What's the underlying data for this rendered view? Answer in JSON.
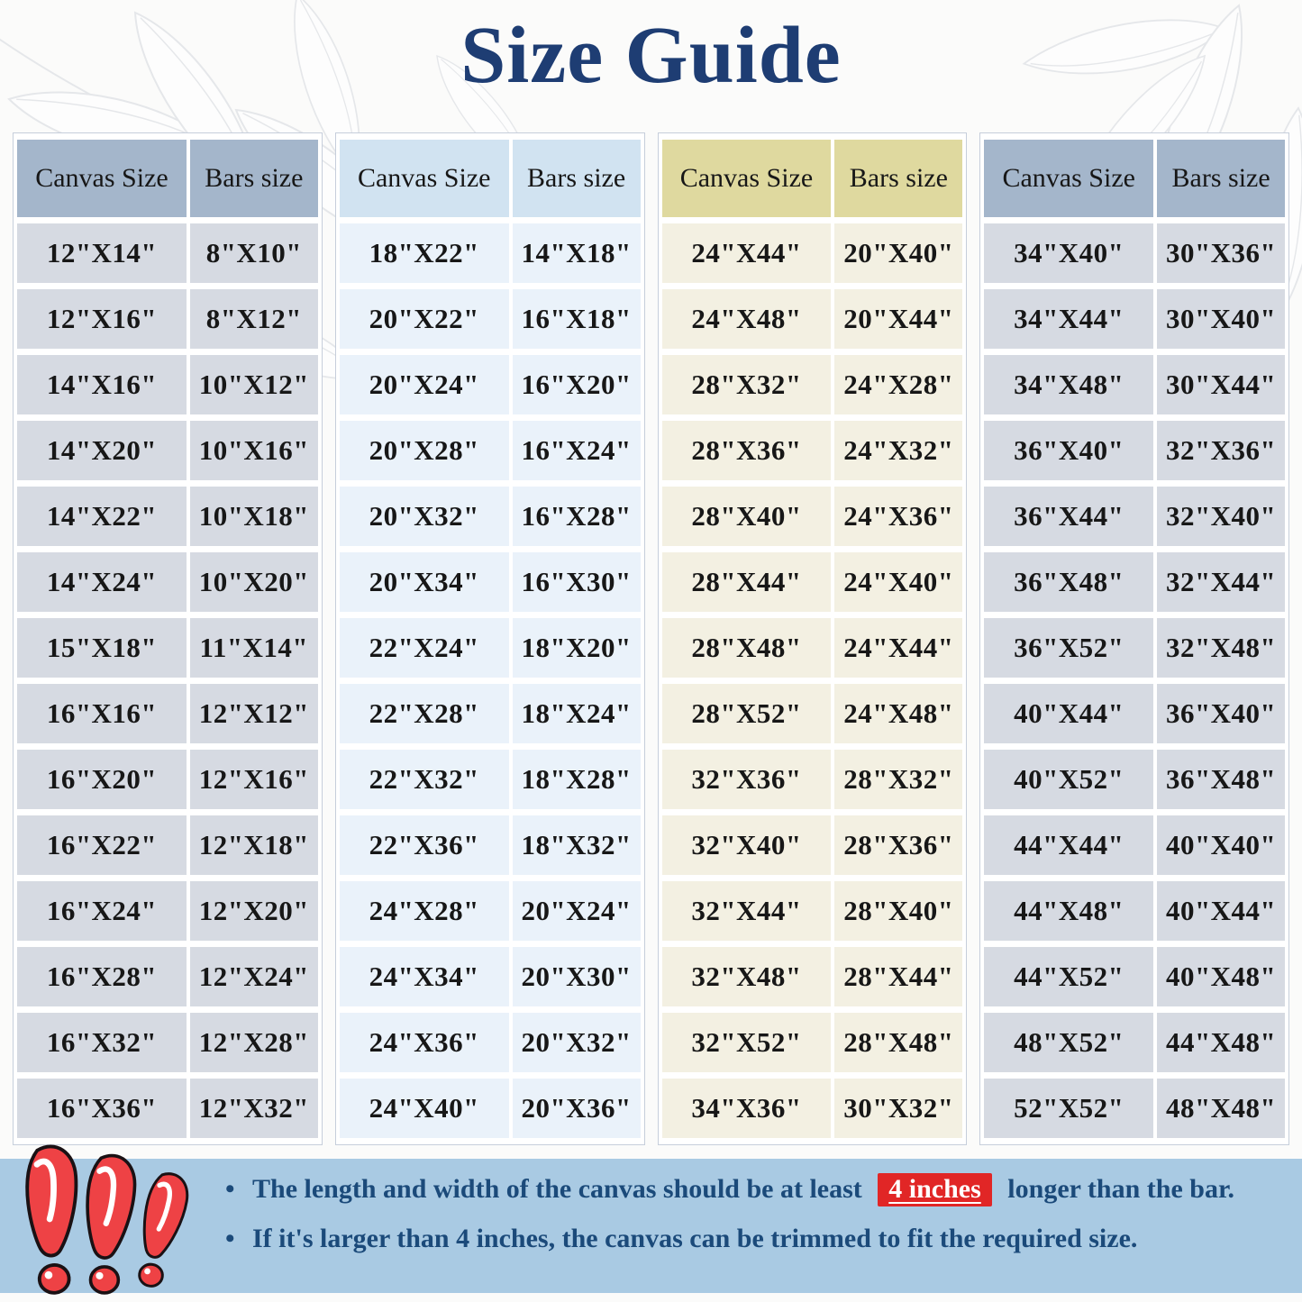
{
  "title": "Size Guide",
  "table_headers": [
    "Canvas Size",
    "Bars size"
  ],
  "tables": [
    {
      "theme": "slate",
      "rows": [
        [
          "12\"X14\"",
          "8\"X10\""
        ],
        [
          "12\"X16\"",
          "8\"X12\""
        ],
        [
          "14\"X16\"",
          "10\"X12\""
        ],
        [
          "14\"X20\"",
          "10\"X16\""
        ],
        [
          "14\"X22\"",
          "10\"X18\""
        ],
        [
          "14\"X24\"",
          "10\"X20\""
        ],
        [
          "15\"X18\"",
          "11\"X14\""
        ],
        [
          "16\"X16\"",
          "12\"X12\""
        ],
        [
          "16\"X20\"",
          "12\"X16\""
        ],
        [
          "16\"X22\"",
          "12\"X18\""
        ],
        [
          "16\"X24\"",
          "12\"X20\""
        ],
        [
          "16\"X28\"",
          "12\"X24\""
        ],
        [
          "16\"X32\"",
          "12\"X28\""
        ],
        [
          "16\"X36\"",
          "12\"X32\""
        ]
      ]
    },
    {
      "theme": "sky",
      "rows": [
        [
          "18\"X22\"",
          "14\"X18\""
        ],
        [
          "20\"X22\"",
          "16\"X18\""
        ],
        [
          "20\"X24\"",
          "16\"X20\""
        ],
        [
          "20\"X28\"",
          "16\"X24\""
        ],
        [
          "20\"X32\"",
          "16\"X28\""
        ],
        [
          "20\"X34\"",
          "16\"X30\""
        ],
        [
          "22\"X24\"",
          "18\"X20\""
        ],
        [
          "22\"X28\"",
          "18\"X24\""
        ],
        [
          "22\"X32\"",
          "18\"X28\""
        ],
        [
          "22\"X36\"",
          "18\"X32\""
        ],
        [
          "24\"X28\"",
          "20\"X24\""
        ],
        [
          "24\"X34\"",
          "20\"X30\""
        ],
        [
          "24\"X36\"",
          "20\"X32\""
        ],
        [
          "24\"X40\"",
          "20\"X36\""
        ]
      ]
    },
    {
      "theme": "cream",
      "rows": [
        [
          "24\"X44\"",
          "20\"X40\""
        ],
        [
          "24\"X48\"",
          "20\"X44\""
        ],
        [
          "28\"X32\"",
          "24\"X28\""
        ],
        [
          "28\"X36\"",
          "24\"X32\""
        ],
        [
          "28\"X40\"",
          "24\"X36\""
        ],
        [
          "28\"X44\"",
          "24\"X40\""
        ],
        [
          "28\"X48\"",
          "24\"X44\""
        ],
        [
          "28\"X52\"",
          "24\"X48\""
        ],
        [
          "32\"X36\"",
          "28\"X32\""
        ],
        [
          "32\"X40\"",
          "28\"X36\""
        ],
        [
          "32\"X44\"",
          "28\"X40\""
        ],
        [
          "32\"X48\"",
          "28\"X44\""
        ],
        [
          "32\"X52\"",
          "28\"X48\""
        ],
        [
          "34\"X36\"",
          "30\"X32\""
        ]
      ]
    },
    {
      "theme": "slate",
      "rows": [
        [
          "34\"X40\"",
          "30\"X36\""
        ],
        [
          "34\"X44\"",
          "30\"X40\""
        ],
        [
          "34\"X48\"",
          "30\"X44\""
        ],
        [
          "36\"X40\"",
          "32\"X36\""
        ],
        [
          "36\"X44\"",
          "32\"X40\""
        ],
        [
          "36\"X48\"",
          "32\"X44\""
        ],
        [
          "36\"X52\"",
          "32\"X48\""
        ],
        [
          "40\"X44\"",
          "36\"X40\""
        ],
        [
          "40\"X52\"",
          "36\"X48\""
        ],
        [
          "44\"X44\"",
          "40\"X40\""
        ],
        [
          "44\"X48\"",
          "40\"X44\""
        ],
        [
          "44\"X52\"",
          "40\"X48\""
        ],
        [
          "48\"X52\"",
          "44\"X48\""
        ],
        [
          "52\"X52\"",
          "48\"X48\""
        ]
      ]
    }
  ],
  "notes": [
    {
      "before": "The length and width of the canvas should be at least",
      "highlight": "4 inches",
      "after": "longer than the bar."
    },
    {
      "before": "If it's larger than 4 inches, the canvas can be trimmed to fit the required size.",
      "highlight": "",
      "after": ""
    }
  ],
  "icons": {
    "footer_icon": "triple-exclamation-marks",
    "background_decoration": "leaf-branch-line-art"
  },
  "colors": {
    "title_navy": "#1e3d73",
    "note_text_navy": "#1b4a7a",
    "footer_background": "#a9cae3",
    "highlight_red": "#e12626",
    "exclamation_red": "#ee4245",
    "slate_header": "#9db0c7",
    "slate_cell": "#d0d5de",
    "sky_header": "#cde1f0",
    "sky_cell": "#e8f1f9",
    "cream_header": "#ddd79a",
    "cream_cell": "#f2efe0"
  }
}
